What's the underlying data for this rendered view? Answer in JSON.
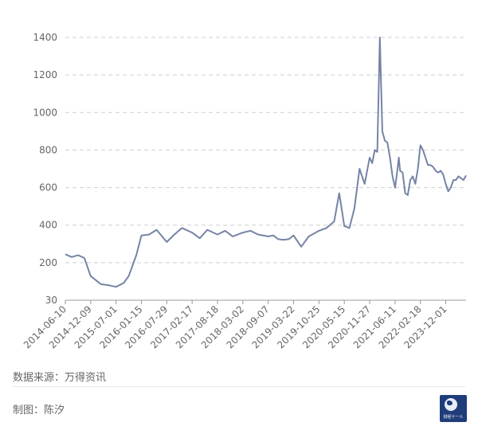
{
  "chart_data": {
    "type": "line",
    "title": "",
    "xlabel": "",
    "ylabel": "",
    "ylim": [
      130,
      1400
    ],
    "yticks": [
      30,
      200,
      400,
      600,
      800,
      1000,
      1200,
      1400
    ],
    "xticks": [
      "2014-06-10",
      "2014-12-09",
      "2015-07-01",
      "2016-01-15",
      "2016-07-29",
      "2017-02-17",
      "2017-08-18",
      "2018-03-02",
      "2018-09-07",
      "2019-03-22",
      "2019-10-25",
      "2020-05-15",
      "2020-11-27",
      "2021-06-11",
      "2022-02-18",
      "2023-12-01"
    ],
    "grid": "horizontal-dashed",
    "legend": "none",
    "series": [
      {
        "color": "#7584a6",
        "x": [
          0,
          0.25,
          0.5,
          0.75,
          1,
          1.4,
          1.7,
          2,
          2.3,
          2.5,
          2.8,
          3,
          3.3,
          3.6,
          4,
          4.3,
          4.6,
          5,
          5.3,
          5.6,
          6,
          6.3,
          6.6,
          7,
          7.3,
          7.6,
          8,
          8.2,
          8.4,
          8.6,
          8.8,
          9,
          9.3,
          9.6,
          10,
          10.3,
          10.6,
          10.8,
          11,
          11.2,
          11.4,
          11.6,
          11.8,
          12,
          12.1,
          12.2,
          12.3,
          12.4,
          12.5,
          12.6,
          12.7,
          12.8,
          12.9,
          13,
          13.05,
          13.1,
          13.15,
          13.2,
          13.3,
          13.4,
          13.5,
          13.6,
          13.7,
          13.8,
          13.9,
          14,
          14.1,
          14.2,
          14.3,
          14.4,
          14.5,
          14.6,
          14.7,
          14.8,
          14.9,
          15,
          15.1,
          15.2,
          15.3,
          15.4,
          15.5,
          15.6,
          15.7,
          15.8
        ],
        "values": [
          245,
          230,
          240,
          225,
          175,
          160,
          158,
          155,
          162,
          175,
          240,
          345,
          350,
          375,
          310,
          350,
          385,
          360,
          330,
          375,
          350,
          370,
          340,
          360,
          370,
          350,
          340,
          345,
          325,
          322,
          325,
          345,
          285,
          340,
          370,
          385,
          420,
          570,
          395,
          385,
          490,
          700,
          620,
          760,
          730,
          800,
          790,
          1400,
          900,
          850,
          840,
          760,
          660,
          600,
          650,
          700,
          760,
          690,
          680,
          570,
          560,
          640,
          660,
          620,
          700,
          825,
          800,
          760,
          720,
          720,
          710,
          690,
          680,
          690,
          670,
          620,
          580,
          600,
          640,
          640,
          660,
          650,
          640,
          665
        ]
      }
    ]
  },
  "footer": {
    "source": "数据来源：万得资讯",
    "author": "制图：陈汐",
    "logo_text": "财经十一人"
  }
}
